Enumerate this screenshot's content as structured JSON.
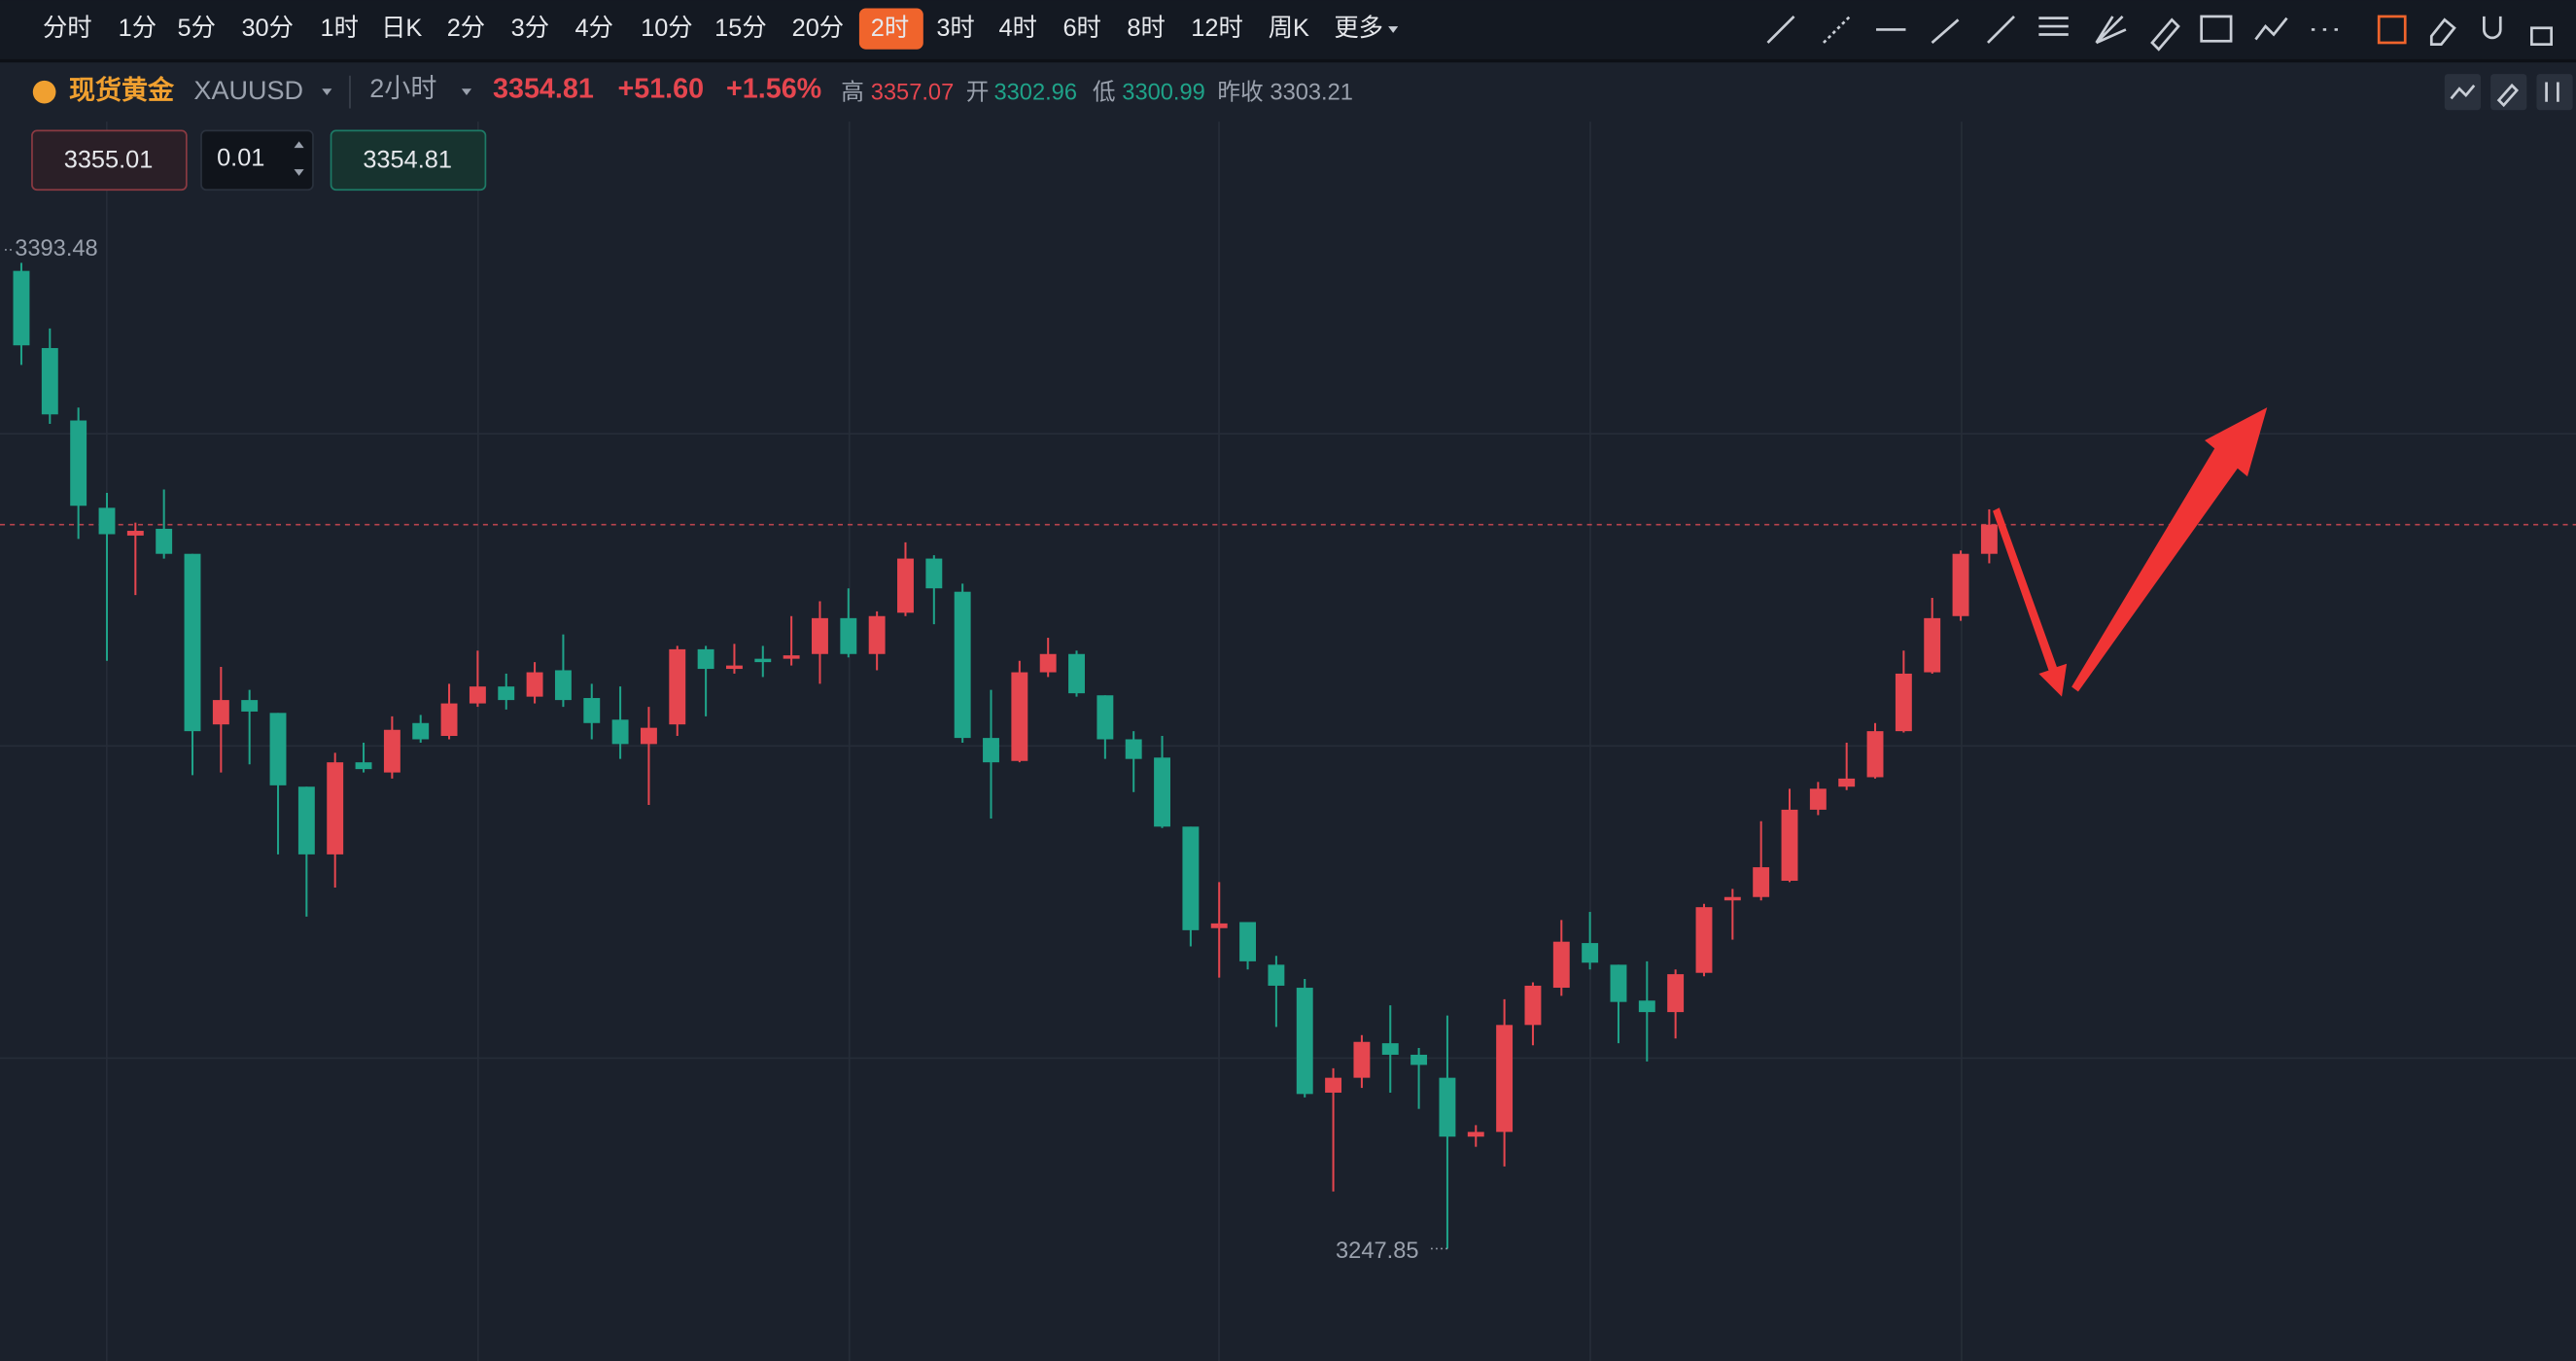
{
  "toolbar": {
    "intervals": [
      "分时",
      "1分",
      "5分",
      "30分",
      "1时",
      "日K",
      "2分",
      "3分",
      "4分",
      "10分",
      "15分",
      "20分",
      "2时",
      "3时",
      "4时",
      "6时",
      "8时",
      "12时",
      "周K",
      "更多"
    ],
    "active_index": 12
  },
  "symbol": {
    "name": "现货黄金",
    "code": "XAUUSD",
    "period": "2小时",
    "price": "3354.81",
    "change": "+51.60",
    "change_pct": "+1.56%",
    "high_label": "高",
    "high": "3357.07",
    "open_label": "开",
    "open": "3302.96",
    "low_label": "低",
    "low": "3300.99",
    "prev_label": "昨收",
    "prev": "3303.21"
  },
  "order": {
    "sell": "3355.01",
    "qty": "0.01",
    "buy": "3354.81"
  },
  "chart_data": {
    "type": "candlestick",
    "up_color": "#e5464f",
    "down_color": "#1fa389",
    "open": [
      3392.3,
      3380.9,
      3370.2,
      3357.3,
      3353.2,
      3354.2,
      3350.5,
      3325.3,
      3328.9,
      3327.0,
      3316.1,
      3306.1,
      3319.7,
      3318.2,
      3325.5,
      3323.6,
      3328.4,
      3330.9,
      3329.4,
      3333.3,
      3329.2,
      3326.0,
      3322.4,
      3325.3,
      3336.4,
      3333.5,
      3335.0,
      3335.0,
      3335.7,
      3341.0,
      3335.7,
      3341.8,
      3349.8,
      3344.9,
      3323.3,
      3319.9,
      3333.0,
      3335.7,
      3329.6,
      3323.1,
      3320.4,
      3310.2,
      3295.2,
      3296.1,
      3289.8,
      3286.4,
      3270.9,
      3273.1,
      3278.2,
      3276.5,
      3273.1,
      3264.4,
      3265.1,
      3280.9,
      3286.4,
      3293.0,
      3289.8,
      3284.5,
      3282.8,
      3288.6,
      3299.3,
      3299.8,
      3302.2,
      3312.7,
      3316.1,
      3317.5,
      3324.3,
      3333.0,
      3341.3,
      3350.5
    ],
    "high": [
      3393.48,
      3383.8,
      3372.1,
      3359.5,
      3355.1,
      3360.0,
      3350.5,
      3333.8,
      3330.4,
      3327.0,
      3316.1,
      3321.1,
      3322.6,
      3326.5,
      3326.7,
      3331.3,
      3336.2,
      3332.8,
      3334.5,
      3338.6,
      3331.3,
      3330.9,
      3327.9,
      3336.9,
      3336.9,
      3337.2,
      3336.9,
      3341.3,
      3343.5,
      3345.4,
      3342.0,
      3352.2,
      3350.3,
      3346.1,
      3330.4,
      3334.7,
      3338.1,
      3336.2,
      3329.6,
      3324.3,
      3323.6,
      3310.2,
      3302.0,
      3296.1,
      3291.1,
      3287.7,
      3274.5,
      3279.4,
      3283.8,
      3277.5,
      3282.3,
      3266.1,
      3284.7,
      3287.2,
      3296.4,
      3297.6,
      3289.8,
      3290.3,
      3289.1,
      3298.8,
      3301.0,
      3311.0,
      3315.8,
      3316.8,
      3322.6,
      3325.5,
      3336.2,
      3344.0,
      3351.0,
      3357.07
    ],
    "low": [
      3378.4,
      3369.7,
      3352.7,
      3334.7,
      3344.4,
      3349.8,
      3317.8,
      3318.2,
      3319.4,
      3306.1,
      3296.9,
      3301.2,
      3318.2,
      3317.3,
      3322.6,
      3323.1,
      3327.9,
      3327.5,
      3328.4,
      3327.9,
      3323.1,
      3320.2,
      3313.4,
      3323.6,
      3326.5,
      3332.8,
      3332.3,
      3334.0,
      3331.3,
      3335.2,
      3333.3,
      3341.3,
      3340.1,
      3322.6,
      3311.4,
      3319.7,
      3332.3,
      3329.4,
      3320.2,
      3315.3,
      3310.0,
      3292.5,
      3287.9,
      3289.1,
      3280.6,
      3270.2,
      3256.3,
      3271.6,
      3270.9,
      3268.5,
      3247.85,
      3262.9,
      3260.0,
      3277.9,
      3285.2,
      3289.1,
      3278.2,
      3275.5,
      3278.9,
      3288.1,
      3293.5,
      3299.3,
      3302.0,
      3311.9,
      3315.6,
      3317.3,
      3324.1,
      3332.8,
      3340.6,
      3349.1
    ],
    "close": [
      3381.3,
      3371.1,
      3357.6,
      3353.4,
      3353.9,
      3350.5,
      3324.3,
      3328.9,
      3327.2,
      3316.3,
      3306.1,
      3319.7,
      3318.7,
      3324.5,
      3323.1,
      3328.4,
      3330.9,
      3328.9,
      3333.0,
      3328.9,
      3325.5,
      3322.4,
      3324.8,
      3336.4,
      3333.5,
      3334.0,
      3334.5,
      3335.5,
      3341.0,
      3335.7,
      3341.3,
      3349.8,
      3345.4,
      3323.3,
      3319.7,
      3333.0,
      3335.7,
      3329.9,
      3323.1,
      3320.2,
      3310.2,
      3294.9,
      3295.9,
      3290.3,
      3286.7,
      3270.7,
      3273.1,
      3278.4,
      3276.5,
      3275.0,
      3264.4,
      3265.1,
      3280.9,
      3286.7,
      3293.2,
      3290.1,
      3284.3,
      3282.8,
      3288.4,
      3298.3,
      3299.8,
      3304.2,
      3312.7,
      3315.8,
      3317.3,
      3324.3,
      3332.8,
      3341.0,
      3350.5,
      3354.81
    ]
  }
}
